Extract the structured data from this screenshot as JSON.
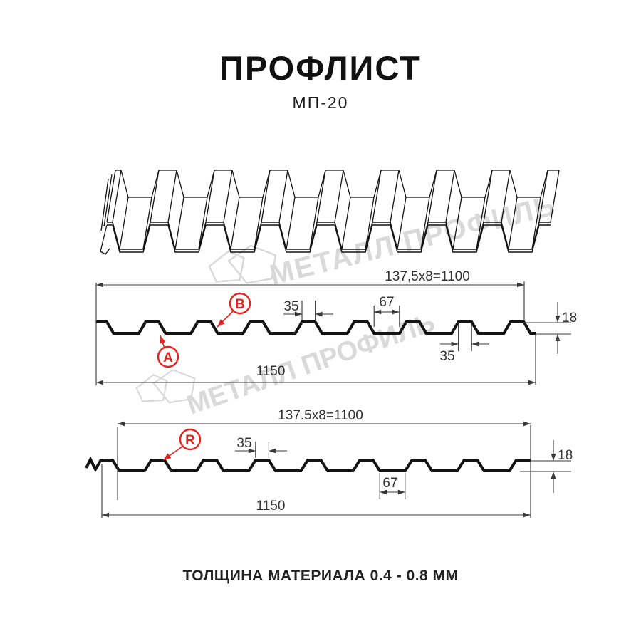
{
  "title": "ПРОФЛИСТ",
  "subtitle": "МП-20",
  "footer": "ТОЛЩИНА МАТЕРИАЛА 0.4 - 0.8 ММ",
  "watermark": {
    "text": "МЕТАЛЛ ПРОФИЛЬ"
  },
  "colors": {
    "line": "#141414",
    "thin": "#3a3a3a",
    "red": "#e8231d",
    "watermark": "#d9d9d9"
  },
  "section_top": {
    "coverage": "137,5x8=1100",
    "total_width": "1150",
    "rib_width": "35",
    "rib_width2": "35",
    "valley_width": "67",
    "height": "18",
    "label_a": "A",
    "label_b": "B"
  },
  "section_bottom": {
    "coverage": "137.5x8=1100",
    "total_width": "1150",
    "rib_width": "35",
    "valley_width": "67",
    "height": "18",
    "label_r": "R"
  }
}
